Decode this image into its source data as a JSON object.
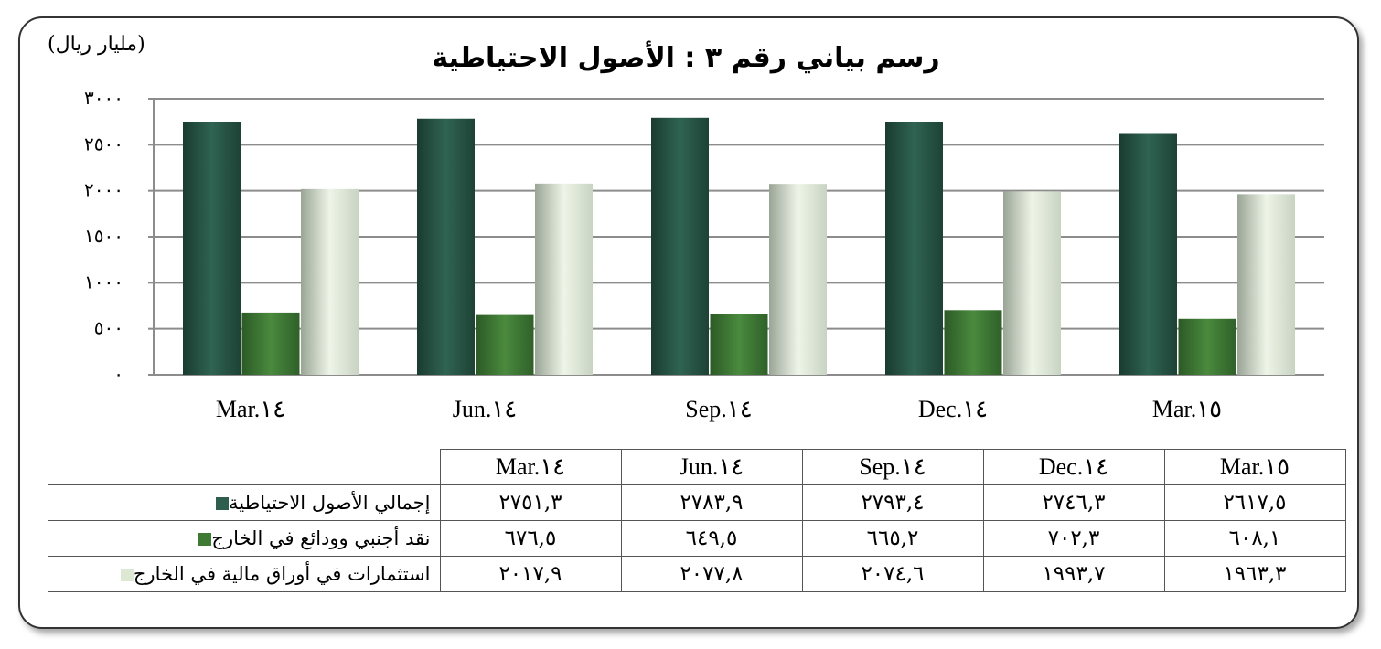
{
  "chart_data": {
    "type": "bar",
    "title": "رسم بياني رقم ٣ :  الأصول الاحتياطية",
    "unit_label": "(مليار ريال)",
    "categories": [
      "Mar.١٤",
      "Jun.١٤",
      "Sep.١٤",
      "Dec.١٤",
      "Mar.١٥"
    ],
    "ylim": [
      0,
      3000
    ],
    "y_ticks": [
      "٠",
      "٥٠٠",
      "١٠٠٠",
      "١٥٠٠",
      "٢٠٠٠",
      "٢٥٠٠",
      "٣٠٠٠"
    ],
    "grid": true,
    "legend_placement": "table-left",
    "series": [
      {
        "name": "إجمالي الأصول الاحتياطية",
        "color": "#2e5e4e",
        "values": [
          2751.3,
          2783.9,
          2793.4,
          2746.3,
          2617.5
        ],
        "labels": [
          "٢٧٥١,٣",
          "٢٧٨٣,٩",
          "٢٧٩٣,٤",
          "٢٧٤٦,٣",
          "٢٦١٧,٥"
        ]
      },
      {
        "name": "نقد أجنبي وودائع في الخارج",
        "color": "#3e7a34",
        "values": [
          676.5,
          649.5,
          665.2,
          702.3,
          608.1
        ],
        "labels": [
          "٦٧٦,٥",
          "٦٤٩,٥",
          "٦٦٥,٢",
          "٧٠٢,٣",
          "٦٠٨,١"
        ]
      },
      {
        "name": "استثمارات في أوراق مالية في الخارج",
        "color": "#e0ebd8",
        "values": [
          2017.9,
          2077.8,
          2074.6,
          1993.7,
          1963.3
        ],
        "labels": [
          "٢٠١٧,٩",
          "٢٠٧٧,٨",
          "٢٠٧٤,٦",
          "١٩٩٣,٧",
          "١٩٦٣,٣"
        ]
      }
    ]
  }
}
